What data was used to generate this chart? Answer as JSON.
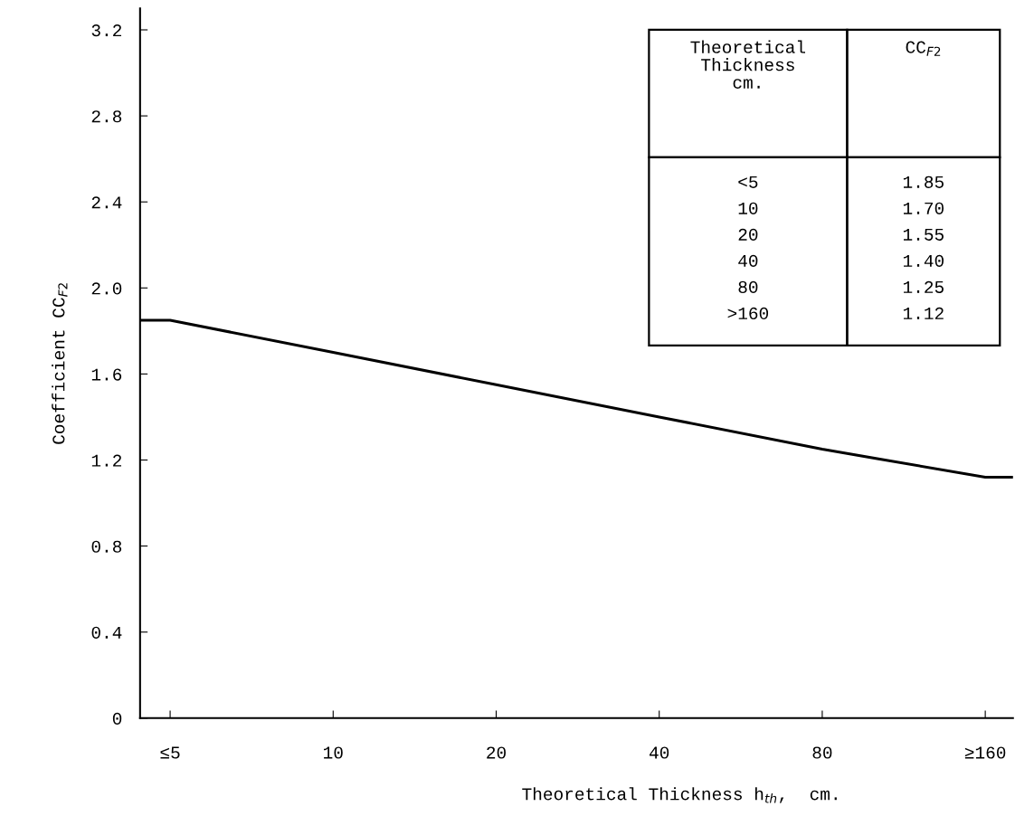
{
  "chart_data": {
    "type": "line",
    "xlabel": "Theoretical Thickness h$_{th}$,  cm.",
    "ylabel": "Coefficient CC$_{F2}$",
    "x": [
      4.4,
      5,
      10,
      20,
      40,
      80,
      160,
      180
    ],
    "series": [
      {
        "color": "#000000",
        "values": [
          1.85,
          1.85,
          1.7,
          1.55,
          1.4,
          1.25,
          1.12,
          1.12
        ]
      }
    ],
    "value_labels": [
      null,
      "1.85",
      "1.70",
      "1.55",
      "1.40",
      "1.25",
      "1.12",
      null
    ],
    "annotations": [
      "Theoretical\nThickness\ncm.",
      "CC$_{F2}$",
      "<5",
      "10",
      "20",
      "40",
      "80",
      ">160"
    ],
    "log": "x",
    "xlim": [
      4.4,
      180
    ],
    "xticks": [
      {
        "value": 5,
        "label": "≤5"
      },
      10,
      20,
      40,
      80,
      {
        "value": 160,
        "label": "≥160"
      }
    ],
    "ylim": [
      0,
      3.3
    ],
    "yticks": [
      0,
      0.4,
      0.8,
      1.2,
      1.6,
      {
        "value": 2,
        "label": "2.0"
      },
      2.4,
      2.8,
      3.2
    ],
    "grid": false,
    "marker": "none",
    "line_style": "solid"
  }
}
